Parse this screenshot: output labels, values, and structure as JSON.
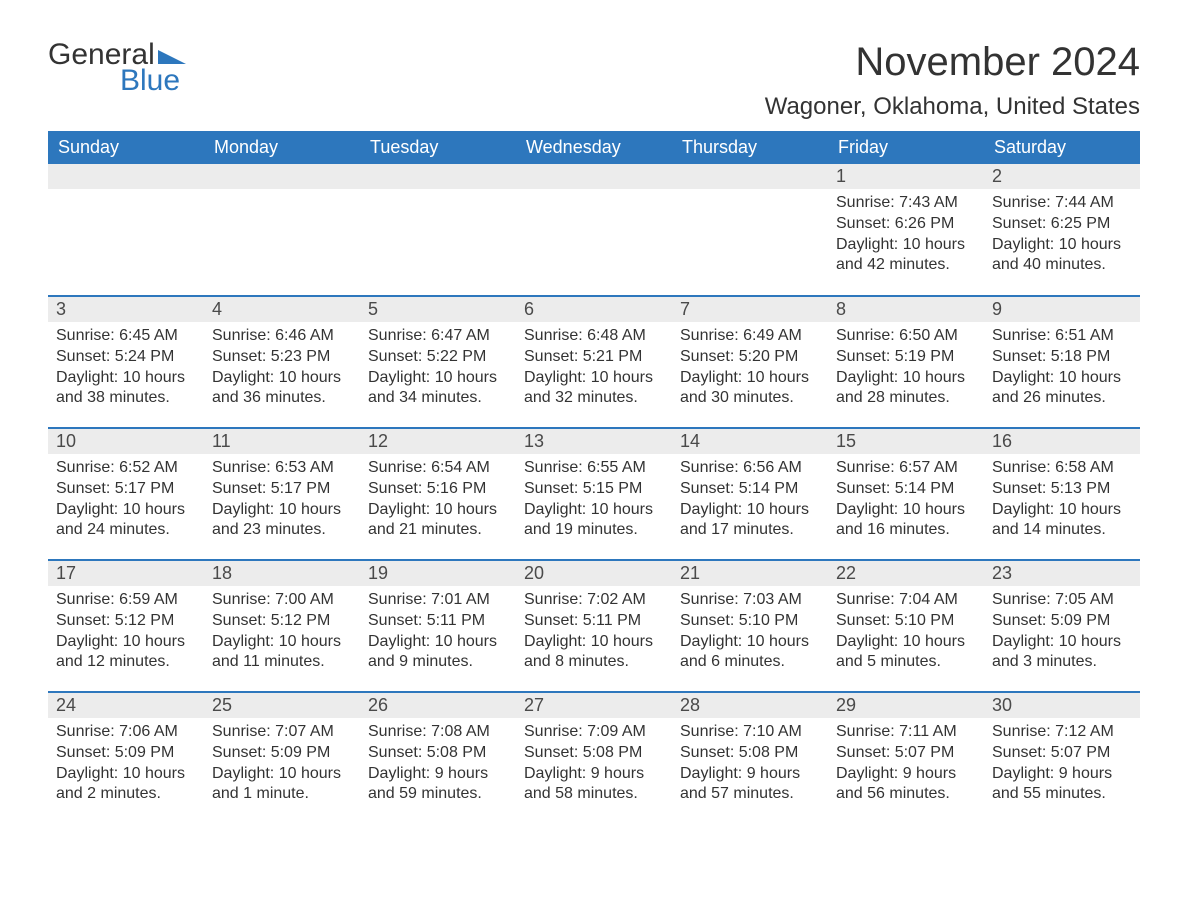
{
  "logo": {
    "word1": "General",
    "word2": "Blue",
    "flag_color": "#2d77bd"
  },
  "title": "November 2024",
  "location": "Wagoner, Oklahoma, United States",
  "colors": {
    "header_bg": "#2d77bd",
    "header_text": "#ffffff",
    "daynum_bg": "#ececec",
    "week_divider": "#2d77bd",
    "body_text": "#333333",
    "page_bg": "#ffffff"
  },
  "weekdays": [
    "Sunday",
    "Monday",
    "Tuesday",
    "Wednesday",
    "Thursday",
    "Friday",
    "Saturday"
  ],
  "weeks": [
    [
      null,
      null,
      null,
      null,
      null,
      {
        "n": "1",
        "sunrise": "Sunrise: 7:43 AM",
        "sunset": "Sunset: 6:26 PM",
        "daylight": "Daylight: 10 hours and 42 minutes."
      },
      {
        "n": "2",
        "sunrise": "Sunrise: 7:44 AM",
        "sunset": "Sunset: 6:25 PM",
        "daylight": "Daylight: 10 hours and 40 minutes."
      }
    ],
    [
      {
        "n": "3",
        "sunrise": "Sunrise: 6:45 AM",
        "sunset": "Sunset: 5:24 PM",
        "daylight": "Daylight: 10 hours and 38 minutes."
      },
      {
        "n": "4",
        "sunrise": "Sunrise: 6:46 AM",
        "sunset": "Sunset: 5:23 PM",
        "daylight": "Daylight: 10 hours and 36 minutes."
      },
      {
        "n": "5",
        "sunrise": "Sunrise: 6:47 AM",
        "sunset": "Sunset: 5:22 PM",
        "daylight": "Daylight: 10 hours and 34 minutes."
      },
      {
        "n": "6",
        "sunrise": "Sunrise: 6:48 AM",
        "sunset": "Sunset: 5:21 PM",
        "daylight": "Daylight: 10 hours and 32 minutes."
      },
      {
        "n": "7",
        "sunrise": "Sunrise: 6:49 AM",
        "sunset": "Sunset: 5:20 PM",
        "daylight": "Daylight: 10 hours and 30 minutes."
      },
      {
        "n": "8",
        "sunrise": "Sunrise: 6:50 AM",
        "sunset": "Sunset: 5:19 PM",
        "daylight": "Daylight: 10 hours and 28 minutes."
      },
      {
        "n": "9",
        "sunrise": "Sunrise: 6:51 AM",
        "sunset": "Sunset: 5:18 PM",
        "daylight": "Daylight: 10 hours and 26 minutes."
      }
    ],
    [
      {
        "n": "10",
        "sunrise": "Sunrise: 6:52 AM",
        "sunset": "Sunset: 5:17 PM",
        "daylight": "Daylight: 10 hours and 24 minutes."
      },
      {
        "n": "11",
        "sunrise": "Sunrise: 6:53 AM",
        "sunset": "Sunset: 5:17 PM",
        "daylight": "Daylight: 10 hours and 23 minutes."
      },
      {
        "n": "12",
        "sunrise": "Sunrise: 6:54 AM",
        "sunset": "Sunset: 5:16 PM",
        "daylight": "Daylight: 10 hours and 21 minutes."
      },
      {
        "n": "13",
        "sunrise": "Sunrise: 6:55 AM",
        "sunset": "Sunset: 5:15 PM",
        "daylight": "Daylight: 10 hours and 19 minutes."
      },
      {
        "n": "14",
        "sunrise": "Sunrise: 6:56 AM",
        "sunset": "Sunset: 5:14 PM",
        "daylight": "Daylight: 10 hours and 17 minutes."
      },
      {
        "n": "15",
        "sunrise": "Sunrise: 6:57 AM",
        "sunset": "Sunset: 5:14 PM",
        "daylight": "Daylight: 10 hours and 16 minutes."
      },
      {
        "n": "16",
        "sunrise": "Sunrise: 6:58 AM",
        "sunset": "Sunset: 5:13 PM",
        "daylight": "Daylight: 10 hours and 14 minutes."
      }
    ],
    [
      {
        "n": "17",
        "sunrise": "Sunrise: 6:59 AM",
        "sunset": "Sunset: 5:12 PM",
        "daylight": "Daylight: 10 hours and 12 minutes."
      },
      {
        "n": "18",
        "sunrise": "Sunrise: 7:00 AM",
        "sunset": "Sunset: 5:12 PM",
        "daylight": "Daylight: 10 hours and 11 minutes."
      },
      {
        "n": "19",
        "sunrise": "Sunrise: 7:01 AM",
        "sunset": "Sunset: 5:11 PM",
        "daylight": "Daylight: 10 hours and 9 minutes."
      },
      {
        "n": "20",
        "sunrise": "Sunrise: 7:02 AM",
        "sunset": "Sunset: 5:11 PM",
        "daylight": "Daylight: 10 hours and 8 minutes."
      },
      {
        "n": "21",
        "sunrise": "Sunrise: 7:03 AM",
        "sunset": "Sunset: 5:10 PM",
        "daylight": "Daylight: 10 hours and 6 minutes."
      },
      {
        "n": "22",
        "sunrise": "Sunrise: 7:04 AM",
        "sunset": "Sunset: 5:10 PM",
        "daylight": "Daylight: 10 hours and 5 minutes."
      },
      {
        "n": "23",
        "sunrise": "Sunrise: 7:05 AM",
        "sunset": "Sunset: 5:09 PM",
        "daylight": "Daylight: 10 hours and 3 minutes."
      }
    ],
    [
      {
        "n": "24",
        "sunrise": "Sunrise: 7:06 AM",
        "sunset": "Sunset: 5:09 PM",
        "daylight": "Daylight: 10 hours and 2 minutes."
      },
      {
        "n": "25",
        "sunrise": "Sunrise: 7:07 AM",
        "sunset": "Sunset: 5:09 PM",
        "daylight": "Daylight: 10 hours and 1 minute."
      },
      {
        "n": "26",
        "sunrise": "Sunrise: 7:08 AM",
        "sunset": "Sunset: 5:08 PM",
        "daylight": "Daylight: 9 hours and 59 minutes."
      },
      {
        "n": "27",
        "sunrise": "Sunrise: 7:09 AM",
        "sunset": "Sunset: 5:08 PM",
        "daylight": "Daylight: 9 hours and 58 minutes."
      },
      {
        "n": "28",
        "sunrise": "Sunrise: 7:10 AM",
        "sunset": "Sunset: 5:08 PM",
        "daylight": "Daylight: 9 hours and 57 minutes."
      },
      {
        "n": "29",
        "sunrise": "Sunrise: 7:11 AM",
        "sunset": "Sunset: 5:07 PM",
        "daylight": "Daylight: 9 hours and 56 minutes."
      },
      {
        "n": "30",
        "sunrise": "Sunrise: 7:12 AM",
        "sunset": "Sunset: 5:07 PM",
        "daylight": "Daylight: 9 hours and 55 minutes."
      }
    ]
  ]
}
